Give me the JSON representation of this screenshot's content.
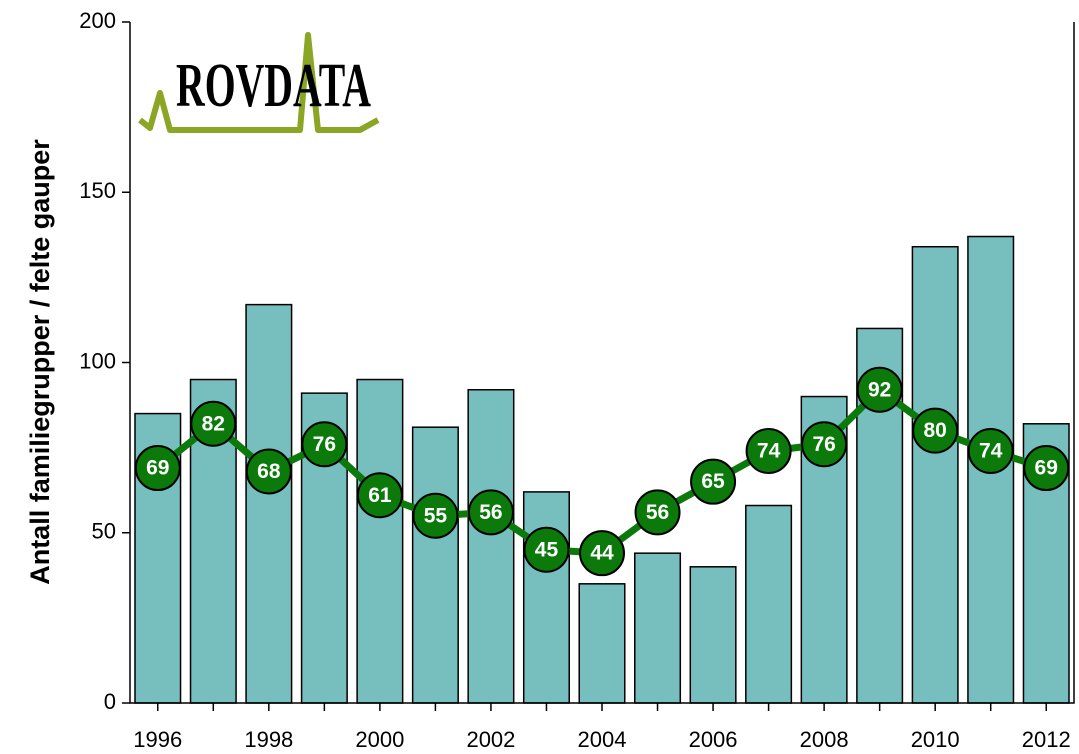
{
  "logo": "ROVDATA",
  "chart_data": {
    "type": "bar-line",
    "ylabel": "Antall familiegrupper / felte gauper",
    "categories": [
      "1996",
      null,
      "1998",
      null,
      "2000",
      null,
      "2002",
      null,
      "2004",
      null,
      "2006",
      null,
      "2008",
      null,
      "2010",
      null,
      "2012"
    ],
    "series": [
      {
        "type": "bar",
        "color": "#77bfbf",
        "values": [
          85,
          95,
          117,
          91,
          95,
          81,
          92,
          62,
          35,
          44,
          40,
          58,
          90,
          110,
          134,
          137,
          82
        ]
      },
      {
        "type": "line",
        "color": "#0b7a0b",
        "values": [
          69,
          82,
          68,
          76,
          61,
          55,
          56,
          45,
          44,
          56,
          65,
          74,
          76,
          92,
          80,
          74,
          69
        ]
      }
    ],
    "ylim": [
      0,
      200
    ],
    "yticks": [
      0,
      50,
      100,
      150,
      200
    ]
  }
}
